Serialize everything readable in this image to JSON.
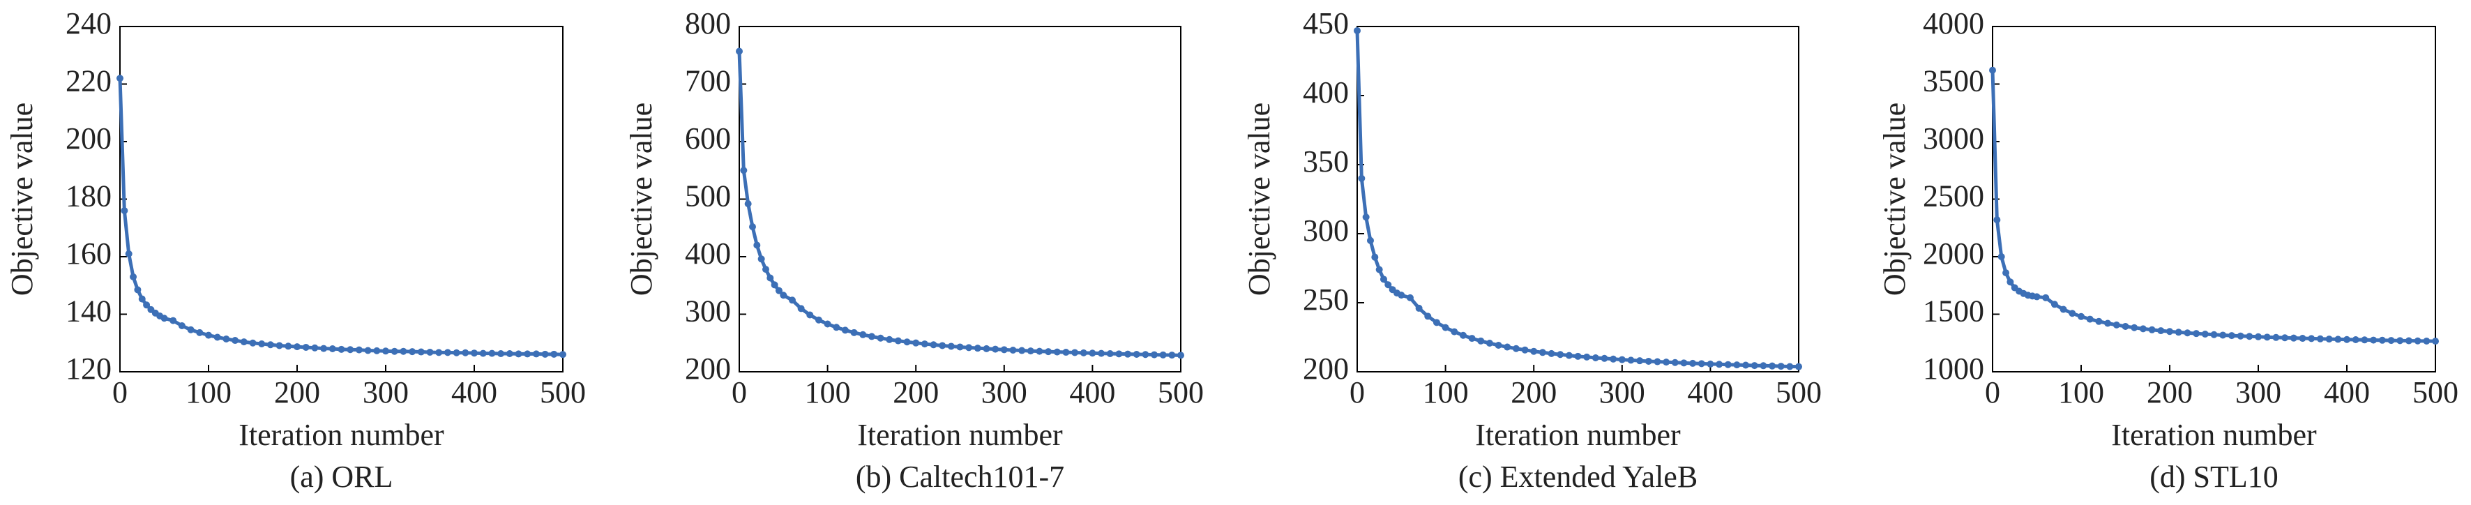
{
  "chart_data": [
    {
      "type": "line",
      "caption": "(a) ORL",
      "x_label": "Iteration number",
      "y_label": "Objective value",
      "color": "#3c6fb6",
      "x": [
        0,
        5,
        10,
        15,
        20,
        25,
        30,
        35,
        40,
        45,
        50,
        60,
        70,
        80,
        90,
        100,
        110,
        120,
        130,
        140,
        150,
        160,
        170,
        180,
        190,
        200,
        210,
        220,
        230,
        240,
        250,
        260,
        270,
        280,
        290,
        300,
        310,
        320,
        330,
        340,
        350,
        360,
        370,
        380,
        390,
        400,
        410,
        420,
        430,
        440,
        450,
        460,
        470,
        480,
        490,
        500
      ],
      "values": [
        222,
        176,
        161,
        153,
        148.5,
        145.3,
        143.2,
        141.6,
        140.4,
        139.4,
        138.6,
        137.8,
        136.0,
        134.6,
        133.6,
        132.7,
        132.0,
        131.4,
        130.9,
        130.4,
        130.0,
        129.7,
        129.4,
        129.1,
        128.9,
        128.7,
        128.5,
        128.3,
        128.1,
        128.0,
        127.8,
        127.7,
        127.6,
        127.4,
        127.3,
        127.2,
        127.1,
        127.1,
        127.0,
        126.9,
        126.8,
        126.7,
        126.7,
        126.6,
        126.6,
        126.5,
        126.4,
        126.4,
        126.3,
        126.3,
        126.2,
        126.2,
        126.2,
        126.1,
        126.1,
        126.0
      ],
      "xlim": [
        0,
        500
      ],
      "xticks": [
        0,
        100,
        200,
        300,
        400,
        500
      ],
      "ylim": [
        120,
        240
      ],
      "yticks": [
        120,
        140,
        160,
        180,
        200,
        220,
        240
      ]
    },
    {
      "type": "line",
      "caption": "(b) Caltech101-7",
      "x_label": "Iteration number",
      "y_label": "Objective value",
      "color": "#3c6fb6",
      "x": [
        0,
        5,
        10,
        15,
        20,
        25,
        30,
        35,
        40,
        45,
        50,
        60,
        70,
        80,
        90,
        100,
        110,
        120,
        130,
        140,
        150,
        160,
        170,
        180,
        190,
        200,
        210,
        220,
        230,
        240,
        250,
        260,
        270,
        280,
        290,
        300,
        310,
        320,
        330,
        340,
        350,
        360,
        370,
        380,
        390,
        400,
        410,
        420,
        430,
        440,
        450,
        460,
        470,
        480,
        490,
        500
      ],
      "values": [
        757,
        550,
        492,
        452,
        420,
        396,
        378,
        363,
        351,
        341,
        333,
        324.5,
        309.9,
        298.8,
        290.0,
        283.0,
        277.2,
        272.3,
        268.1,
        264.5,
        261.3,
        258.5,
        256.0,
        253.8,
        251.8,
        250.1,
        248.4,
        246.9,
        245.5,
        244.3,
        243.1,
        242.0,
        241.0,
        240.1,
        239.3,
        238.4,
        237.6,
        236.9,
        236.2,
        235.6,
        235.0,
        234.4,
        233.9,
        233.4,
        232.9,
        232.4,
        232.0,
        231.5,
        231.1,
        230.7,
        230.3,
        230.0,
        229.6,
        229.3,
        229.0,
        228.7
      ],
      "xlim": [
        0,
        500
      ],
      "xticks": [
        0,
        100,
        200,
        300,
        400,
        500
      ],
      "ylim": [
        200,
        800
      ],
      "yticks": [
        200,
        300,
        400,
        500,
        600,
        700,
        800
      ]
    },
    {
      "type": "line",
      "caption": "(c) Extended YaleB",
      "x_label": "Iteration number",
      "y_label": "Objective value",
      "color": "#3c6fb6",
      "x": [
        0,
        5,
        10,
        15,
        20,
        25,
        30,
        35,
        40,
        45,
        50,
        60,
        70,
        80,
        90,
        100,
        110,
        120,
        130,
        140,
        150,
        160,
        170,
        180,
        190,
        200,
        210,
        220,
        230,
        240,
        250,
        260,
        270,
        280,
        290,
        300,
        310,
        320,
        330,
        340,
        350,
        360,
        370,
        380,
        390,
        400,
        410,
        420,
        430,
        440,
        450,
        460,
        470,
        480,
        490,
        500
      ],
      "values": [
        447,
        340,
        312,
        295,
        283,
        274,
        267,
        263,
        259.5,
        257,
        255.5,
        253.6,
        246.0,
        240.2,
        235.7,
        232.0,
        229.0,
        226.4,
        224.2,
        222.3,
        220.7,
        219.2,
        217.9,
        216.8,
        215.8,
        214.8,
        214.0,
        213.2,
        212.5,
        211.8,
        211.2,
        210.7,
        210.1,
        209.7,
        209.2,
        208.8,
        208.4,
        208.0,
        207.6,
        207.3,
        207.0,
        206.7,
        206.4,
        206.1,
        205.9,
        205.6,
        205.4,
        205.2,
        205.0,
        204.8,
        204.5,
        204.4,
        204.2,
        204.0,
        203.8,
        203.7
      ],
      "xlim": [
        0,
        500
      ],
      "xticks": [
        0,
        100,
        200,
        300,
        400,
        500
      ],
      "ylim": [
        200,
        450
      ],
      "yticks": [
        200,
        250,
        300,
        350,
        400,
        450
      ]
    },
    {
      "type": "line",
      "caption": "(d) STL10",
      "x_label": "Iteration number",
      "y_label": "Objective value",
      "color": "#3c6fb6",
      "x": [
        0,
        5,
        10,
        15,
        20,
        25,
        30,
        35,
        40,
        45,
        50,
        60,
        70,
        80,
        90,
        100,
        110,
        120,
        130,
        140,
        150,
        160,
        170,
        180,
        190,
        200,
        210,
        220,
        230,
        240,
        250,
        260,
        270,
        280,
        290,
        300,
        310,
        320,
        330,
        340,
        350,
        360,
        370,
        380,
        390,
        400,
        410,
        420,
        430,
        440,
        450,
        460,
        470,
        480,
        490,
        500
      ],
      "values": [
        3620,
        2320,
        2000,
        1860,
        1780,
        1730,
        1700,
        1680,
        1665,
        1658,
        1652,
        1643.5,
        1586.1,
        1542.2,
        1507.7,
        1480,
        1457.0,
        1437.7,
        1421.2,
        1406.9,
        1394.3,
        1383.4,
        1373.6,
        1364.9,
        1357.1,
        1350.1,
        1343.6,
        1337.8,
        1332.2,
        1327.4,
        1322.6,
        1318.4,
        1314.5,
        1310.9,
        1307.5,
        1304.2,
        1301.1,
        1298.3,
        1295.5,
        1293.0,
        1290.7,
        1288.5,
        1286.2,
        1284.3,
        1282.3,
        1280.4,
        1278.7,
        1277.0,
        1275.3,
        1273.9,
        1272.2,
        1270.8,
        1269.4,
        1268.3,
        1266.9,
        1265.8
      ],
      "xlim": [
        0,
        500
      ],
      "xticks": [
        0,
        100,
        200,
        300,
        400,
        500
      ],
      "ylim": [
        1000,
        4000
      ],
      "yticks": [
        1000,
        1500,
        2000,
        2500,
        3000,
        3500,
        4000
      ]
    }
  ]
}
